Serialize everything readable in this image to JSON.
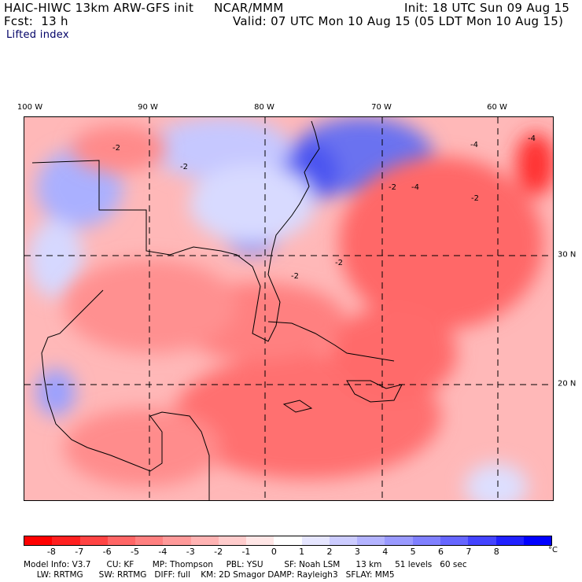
{
  "header": {
    "model": "HAIC-HIWC 13km ARW-GFS init",
    "org": "NCAR/MMM",
    "fcst": "Fcst:  13 h",
    "init": "Init: 18 UTC Sun 09 Aug 15",
    "valid": "Valid: 07 UTC Mon 10 Aug 15 (05 LDT Mon 10 Aug 15)",
    "field": "Lifted index"
  },
  "axes": {
    "lon_labels": [
      "100 W",
      "90 W",
      "80 W",
      "70 W",
      "60 W"
    ],
    "lat_labels": [
      "30 N",
      "20 N"
    ]
  },
  "legend": {
    "colors": [
      "#ff0000",
      "#ff2020",
      "#ff4444",
      "#ff6666",
      "#ff8080",
      "#ff9a9a",
      "#ffb3b3",
      "#ffcccc",
      "#ffe6e6",
      "#ffffff",
      "#e6e6ff",
      "#ccccff",
      "#b3b3ff",
      "#9a9aff",
      "#8080ff",
      "#6666ff",
      "#4444ff",
      "#2020ff",
      "#0000ff"
    ],
    "ticks": [
      "-8",
      "-7",
      "-6",
      "-5",
      "-4",
      "-3",
      "-2",
      "-1",
      "0",
      "1",
      "2",
      "3",
      "4",
      "5",
      "6",
      "7",
      "8"
    ],
    "unit": "°C"
  },
  "contour_labels": [
    "-2",
    "-2",
    "-2",
    "-4",
    "-2",
    "-4",
    "-2",
    "-2",
    "-4"
  ],
  "footer": {
    "line1": "Model Info: V3.7      CU: KF       MP: Thompson     PBL: YSU        SF: Noah LSM      13 km     51 levels   60 sec",
    "line2": "     LW: RRTMG      SW: RRTMG   DIFF: full    KM: 2D Smagor DAMP: Rayleigh3   SFLAY: MM5"
  }
}
